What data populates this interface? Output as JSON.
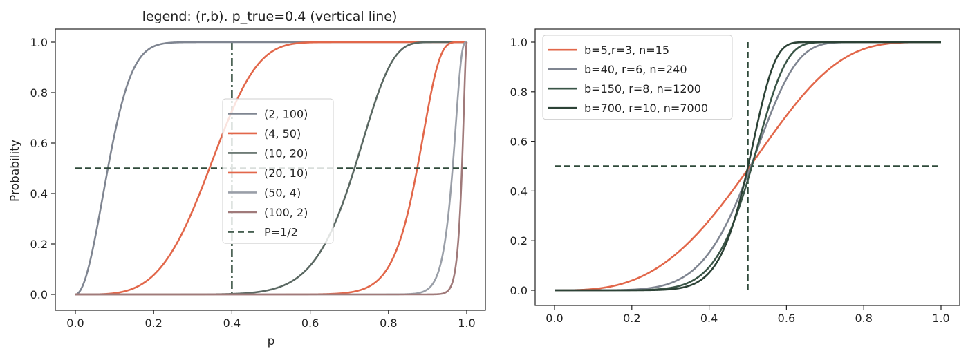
{
  "chart_data": [
    {
      "type": "line",
      "title": "legend: (r,b). p_true=0.4 (vertical line)",
      "xlabel": "p",
      "ylabel": "Probability",
      "xlim": [
        0,
        1
      ],
      "ylim": [
        0,
        1
      ],
      "x_ticks": [
        0.0,
        0.2,
        0.4,
        0.6,
        0.8,
        1.0
      ],
      "x_tick_labels": [
        "0.0",
        "0.2",
        "0.4",
        "0.6",
        "0.8",
        "1.0"
      ],
      "y_ticks": [
        0.0,
        0.2,
        0.4,
        0.6,
        0.8,
        1.0
      ],
      "y_tick_labels": [
        "0.0",
        "0.2",
        "0.4",
        "0.6",
        "0.8",
        "1.0"
      ],
      "grid": false,
      "legend_position": "center-right",
      "function": "1-(1-p^r)^b",
      "series": [
        {
          "name": "(2, 100)",
          "r": 2,
          "b": 100,
          "color": "#7f8591",
          "style": "solid"
        },
        {
          "name": "(4, 50)",
          "r": 4,
          "b": 50,
          "color": "#e2674a",
          "style": "solid"
        },
        {
          "name": "(10, 20)",
          "r": 10,
          "b": 20,
          "color": "#5a6862",
          "style": "solid"
        },
        {
          "name": "(20, 10)",
          "r": 20,
          "b": 10,
          "color": "#e2674a",
          "style": "solid"
        },
        {
          "name": "(50, 4)",
          "r": 50,
          "b": 4,
          "color": "#9a9fa8",
          "style": "solid"
        },
        {
          "name": "(100, 2)",
          "r": 100,
          "b": 2,
          "color": "#a07a7a",
          "style": "solid"
        },
        {
          "name": "P=1/2",
          "x": [
            0,
            1
          ],
          "y": [
            0.5,
            0.5
          ],
          "color": "#2f4a3a",
          "style": "dashed"
        }
      ],
      "vertical_line": {
        "x": 0.4,
        "color": "#2f4a3a",
        "style": "dashdot"
      }
    },
    {
      "type": "line",
      "title": "",
      "xlabel": "",
      "ylabel": "",
      "xlim": [
        0,
        1
      ],
      "ylim": [
        0,
        1
      ],
      "x_ticks": [
        0.0,
        0.2,
        0.4,
        0.6,
        0.8,
        1.0
      ],
      "x_tick_labels": [
        "0.0",
        "0.2",
        "0.4",
        "0.6",
        "0.8",
        "1.0"
      ],
      "y_ticks": [
        0.0,
        0.2,
        0.4,
        0.6,
        0.8,
        1.0
      ],
      "y_tick_labels": [
        "0.0",
        "0.2",
        "0.4",
        "0.6",
        "0.8",
        "1.0"
      ],
      "grid": false,
      "legend_position": "top-left",
      "function": "1-(1-p^r)^b",
      "series": [
        {
          "name": "b=5,r=3, n=15",
          "r": 3,
          "b": 5,
          "color": "#e2674a",
          "style": "solid"
        },
        {
          "name": "b=40, r=6, n=240",
          "r": 6,
          "b": 40,
          "color": "#7f8591",
          "style": "solid"
        },
        {
          "name": "b=150, r=8, n=1200",
          "r": 8,
          "b": 150,
          "color": "#3a5547",
          "style": "solid"
        },
        {
          "name": "b=700, r=10, n=7000",
          "r": 10,
          "b": 700,
          "color": "#2c4236",
          "style": "solid"
        }
      ],
      "horizontal_line": {
        "y": 0.5,
        "color": "#2f4a3a",
        "style": "dashed"
      },
      "vertical_line": {
        "x": 0.5,
        "color": "#2f4a3a",
        "style": "dashed"
      }
    }
  ]
}
